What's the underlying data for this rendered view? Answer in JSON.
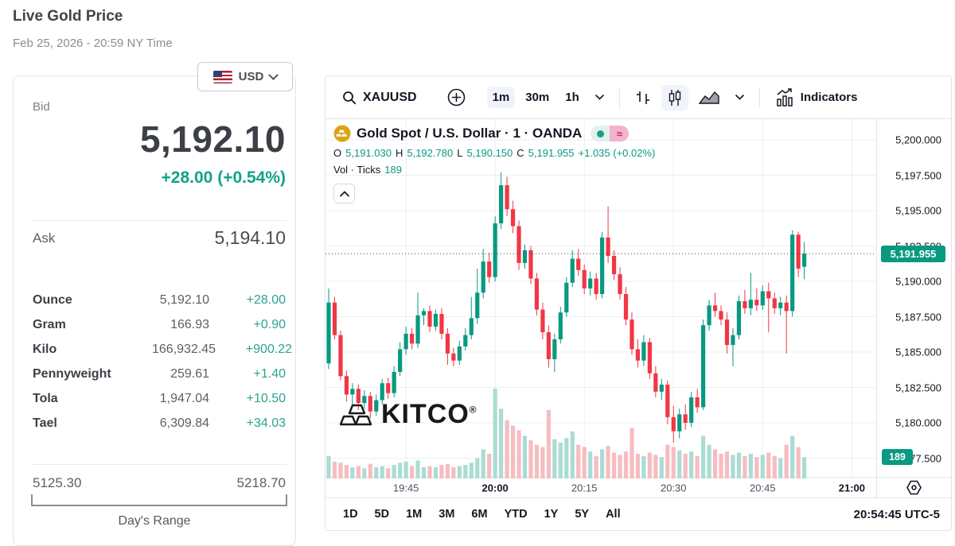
{
  "page": {
    "title": "Live Gold Price",
    "date": "Feb 25, 2026 - 20:59 NY Time"
  },
  "currency_selector": {
    "value": "USD",
    "flag": "us-flag"
  },
  "left_panel": {
    "bid_label": "Bid",
    "bid": "5,192.10",
    "bid_change": "+28.00 (+0.54%)",
    "ask_label": "Ask",
    "ask": "5,194.10",
    "rows": [
      {
        "label": "Ounce",
        "value": "5,192.10",
        "change": "+28.00"
      },
      {
        "label": "Gram",
        "value": "166.93",
        "change": "+0.90"
      },
      {
        "label": "Kilo",
        "value": "166,932.45",
        "change": "+900.22"
      },
      {
        "label": "Pennyweight",
        "value": "259.61",
        "change": "+1.40"
      },
      {
        "label": "Tola",
        "value": "1,947.04",
        "change": "+10.50"
      },
      {
        "label": "Tael",
        "value": "6,309.84",
        "change": "+34.03"
      }
    ],
    "range_low": "5125.30",
    "range_high": "5218.70",
    "range_label": "Day's Range"
  },
  "chart": {
    "toolbar": {
      "symbol": "XAUUSD",
      "timeframes": [
        "1m",
        "30m",
        "1h"
      ],
      "selected_timeframe": "1m",
      "indicators_label": "Indicators"
    },
    "legend": {
      "symbol_name": "Gold Spot / U.S. Dollar · 1 · OANDA",
      "approx_glyph": "≈",
      "o_label": "O",
      "o": "5,191.030",
      "h_label": "H",
      "h": "5,192.780",
      "l_label": "L",
      "l": "5,190.150",
      "c_label": "C",
      "c": "5,191.955",
      "change": "+1.035 (+0.02%)",
      "vol_label": "Vol · Ticks",
      "vol_value": "189"
    },
    "price_axis": {
      "last_badge": "5,191.955",
      "vol_badge": "189"
    },
    "bottom": {
      "ranges": [
        "1D",
        "5D",
        "1M",
        "3M",
        "6M",
        "YTD",
        "1Y",
        "5Y",
        "All"
      ],
      "clock": "20:54:45 UTC-5"
    },
    "watermark": "KITCO",
    "watermark_reg": "®",
    "colors": {
      "up": "#089981",
      "down": "#f23645",
      "vol_up": "#abdcd4",
      "vol_down": "#f6bdc0",
      "accent_teal": "#12a188"
    }
  },
  "chart_data": {
    "type": "candlestick",
    "title": "Gold Spot / U.S. Dollar · 1 · OANDA",
    "interval": "1m",
    "last_price": 5191.955,
    "y_ticks": [
      {
        "label": "5,200.000",
        "price": 5200.0
      },
      {
        "label": "5,197.500",
        "price": 5197.5
      },
      {
        "label": "5,195.000",
        "price": 5195.0
      },
      {
        "label": "5,192.500",
        "price": 5192.5
      },
      {
        "label": "5,190.000",
        "price": 5190.0
      },
      {
        "label": "5,187.500",
        "price": 5187.5
      },
      {
        "label": "5,185.000",
        "price": 5185.0
      },
      {
        "label": "5,182.500",
        "price": 5182.5
      },
      {
        "label": "5,180.000",
        "price": 5180.0
      },
      {
        "label": "5,177.500",
        "price": 5177.5
      }
    ],
    "x_ticks": [
      {
        "label": "19:45",
        "minute": 13,
        "major": false
      },
      {
        "label": "20:00",
        "minute": 28,
        "major": true
      },
      {
        "label": "20:15",
        "minute": 43,
        "major": false
      },
      {
        "label": "20:30",
        "minute": 58,
        "major": false
      },
      {
        "label": "20:45",
        "minute": 73,
        "major": false
      },
      {
        "label": "21:00",
        "minute": 88,
        "major": true
      }
    ],
    "columns": [
      "time",
      "open",
      "high",
      "low",
      "close",
      "volume"
    ],
    "candles": [
      [
        "19:32",
        5184.2,
        5189.5,
        5183.8,
        5188.5,
        200
      ],
      [
        "19:33",
        5188.5,
        5188.9,
        5185.9,
        5186.2,
        150
      ],
      [
        "19:34",
        5186.2,
        5186.5,
        5183.0,
        5183.3,
        140
      ],
      [
        "19:35",
        5183.3,
        5183.7,
        5181.5,
        5182.0,
        120
      ],
      [
        "19:36",
        5182.0,
        5182.8,
        5181.1,
        5182.4,
        100
      ],
      [
        "19:37",
        5182.4,
        5182.7,
        5180.9,
        5181.4,
        110
      ],
      [
        "19:38",
        5181.4,
        5182.3,
        5181.0,
        5181.9,
        90
      ],
      [
        "19:39",
        5181.9,
        5182.2,
        5180.3,
        5180.8,
        130
      ],
      [
        "19:40",
        5180.8,
        5182.0,
        5180.5,
        5181.6,
        100
      ],
      [
        "19:41",
        5181.6,
        5183.1,
        5181.3,
        5182.8,
        110
      ],
      [
        "19:42",
        5182.8,
        5183.2,
        5181.7,
        5182.1,
        90
      ],
      [
        "19:43",
        5182.1,
        5184.0,
        5181.8,
        5183.6,
        120
      ],
      [
        "19:44",
        5183.6,
        5185.7,
        5183.3,
        5185.2,
        140
      ],
      [
        "19:45",
        5185.2,
        5186.8,
        5184.8,
        5186.3,
        150
      ],
      [
        "19:46",
        5186.3,
        5186.7,
        5185.2,
        5185.6,
        110
      ],
      [
        "19:47",
        5185.6,
        5189.2,
        5185.3,
        5187.6,
        160
      ],
      [
        "19:48",
        5187.6,
        5188.1,
        5186.9,
        5187.9,
        100
      ],
      [
        "19:49",
        5187.9,
        5188.3,
        5186.4,
        5186.8,
        110
      ],
      [
        "19:50",
        5186.8,
        5188.0,
        5186.5,
        5187.7,
        100
      ],
      [
        "19:51",
        5187.7,
        5188.1,
        5185.9,
        5186.3,
        120
      ],
      [
        "19:52",
        5186.3,
        5186.7,
        5184.1,
        5184.9,
        130
      ],
      [
        "19:53",
        5184.9,
        5185.3,
        5184.0,
        5184.4,
        100
      ],
      [
        "19:54",
        5184.4,
        5185.8,
        5184.1,
        5185.4,
        110
      ],
      [
        "19:55",
        5185.4,
        5186.7,
        5185.1,
        5186.2,
        120
      ],
      [
        "19:56",
        5186.2,
        5188.9,
        5185.9,
        5187.4,
        140
      ],
      [
        "19:57",
        5187.4,
        5190.9,
        5187.0,
        5189.2,
        180
      ],
      [
        "19:58",
        5189.2,
        5192.3,
        5188.8,
        5191.4,
        260
      ],
      [
        "19:59",
        5191.4,
        5192.0,
        5189.9,
        5190.3,
        220
      ],
      [
        "20:00",
        5190.3,
        5194.6,
        5190.0,
        5194.1,
        800
      ],
      [
        "20:01",
        5194.1,
        5197.7,
        5193.7,
        5196.8,
        620
      ],
      [
        "20:02",
        5196.8,
        5197.4,
        5194.6,
        5195.1,
        520
      ],
      [
        "20:03",
        5195.1,
        5195.7,
        5193.4,
        5193.9,
        470
      ],
      [
        "20:04",
        5193.9,
        5194.3,
        5190.8,
        5191.3,
        430
      ],
      [
        "20:05",
        5191.3,
        5192.6,
        5190.9,
        5192.2,
        380
      ],
      [
        "20:06",
        5192.2,
        5192.5,
        5189.8,
        5190.2,
        340
      ],
      [
        "20:07",
        5190.2,
        5190.6,
        5187.6,
        5188.0,
        300
      ],
      [
        "20:08",
        5188.0,
        5188.5,
        5185.9,
        5186.4,
        280
      ],
      [
        "20:09",
        5186.4,
        5186.9,
        5183.9,
        5184.5,
        610
      ],
      [
        "20:10",
        5184.5,
        5186.3,
        5183.6,
        5185.9,
        350
      ],
      [
        "20:11",
        5185.9,
        5188.2,
        5185.6,
        5187.8,
        320
      ],
      [
        "20:12",
        5187.8,
        5190.3,
        5187.5,
        5189.9,
        360
      ],
      [
        "20:13",
        5189.9,
        5192.2,
        5189.6,
        5191.6,
        420
      ],
      [
        "20:14",
        5191.6,
        5192.3,
        5190.4,
        5190.8,
        300
      ],
      [
        "20:15",
        5190.8,
        5191.2,
        5189.1,
        5189.5,
        280
      ],
      [
        "20:16",
        5189.5,
        5190.7,
        5189.0,
        5190.2,
        240
      ],
      [
        "20:17",
        5190.2,
        5190.6,
        5188.7,
        5189.1,
        200
      ],
      [
        "20:18",
        5189.1,
        5193.5,
        5188.8,
        5193.1,
        260
      ],
      [
        "20:19",
        5193.1,
        5195.3,
        5191.3,
        5191.8,
        290
      ],
      [
        "20:20",
        5191.8,
        5192.2,
        5190.1,
        5190.5,
        230
      ],
      [
        "20:21",
        5190.5,
        5191.0,
        5188.7,
        5189.1,
        210
      ],
      [
        "20:22",
        5189.1,
        5189.6,
        5186.9,
        5187.3,
        240
      ],
      [
        "20:23",
        5187.3,
        5187.8,
        5184.8,
        5185.2,
        450
      ],
      [
        "20:24",
        5185.2,
        5185.9,
        5183.9,
        5184.4,
        220
      ],
      [
        "20:25",
        5184.4,
        5186.2,
        5184.0,
        5185.7,
        200
      ],
      [
        "20:26",
        5185.7,
        5186.0,
        5183.1,
        5183.5,
        230
      ],
      [
        "20:27",
        5183.5,
        5184.0,
        5181.8,
        5182.2,
        210
      ],
      [
        "20:28",
        5182.2,
        5183.1,
        5181.6,
        5182.7,
        190
      ],
      [
        "20:29",
        5182.7,
        5183.0,
        5179.9,
        5180.4,
        300
      ],
      [
        "20:30",
        5180.4,
        5181.2,
        5178.6,
        5179.4,
        280
      ],
      [
        "20:31",
        5179.4,
        5181.0,
        5178.9,
        5180.6,
        250
      ],
      [
        "20:32",
        5180.6,
        5181.3,
        5179.5,
        5180.0,
        220
      ],
      [
        "20:33",
        5180.0,
        5182.2,
        5179.7,
        5181.8,
        240
      ],
      [
        "20:34",
        5181.8,
        5182.4,
        5180.7,
        5181.1,
        200
      ],
      [
        "20:35",
        5181.1,
        5187.3,
        5180.9,
        5186.9,
        380
      ],
      [
        "20:36",
        5186.9,
        5188.7,
        5186.5,
        5188.3,
        300
      ],
      [
        "20:37",
        5188.3,
        5189.2,
        5187.5,
        5187.9,
        260
      ],
      [
        "20:38",
        5187.9,
        5188.3,
        5186.9,
        5187.3,
        220
      ],
      [
        "20:39",
        5187.3,
        5187.8,
        5184.9,
        5185.5,
        240
      ],
      [
        "20:40",
        5185.5,
        5186.7,
        5184.0,
        5186.2,
        210
      ],
      [
        "20:41",
        5186.2,
        5189.0,
        5185.9,
        5188.6,
        230
      ],
      [
        "20:42",
        5188.6,
        5189.4,
        5187.7,
        5188.1,
        200
      ],
      [
        "20:43",
        5188.1,
        5190.6,
        5187.6,
        5188.7,
        220
      ],
      [
        "20:44",
        5188.7,
        5189.5,
        5187.9,
        5188.3,
        190
      ],
      [
        "20:45",
        5188.3,
        5189.7,
        5188.0,
        5189.3,
        210
      ],
      [
        "20:46",
        5189.3,
        5189.9,
        5186.4,
        5188.8,
        230
      ],
      [
        "20:47",
        5188.8,
        5189.2,
        5187.7,
        5188.1,
        200
      ],
      [
        "20:48",
        5188.1,
        5188.9,
        5187.6,
        5188.5,
        180
      ],
      [
        "20:49",
        5188.5,
        5189.0,
        5184.9,
        5187.9,
        300
      ],
      [
        "20:50",
        5187.9,
        5193.6,
        5187.5,
        5193.3,
        380
      ],
      [
        "20:51",
        5193.3,
        5193.5,
        5190.3,
        5190.9,
        280
      ],
      [
        "20:52",
        5191.03,
        5192.78,
        5190.15,
        5191.955,
        189
      ]
    ]
  }
}
